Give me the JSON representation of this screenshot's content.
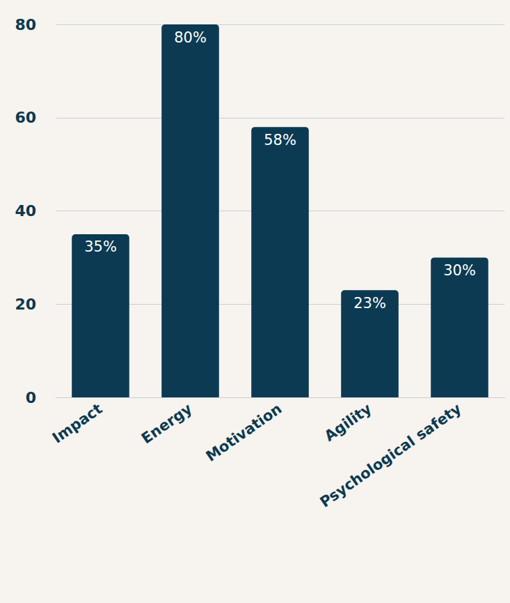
{
  "chart_data": {
    "type": "bar",
    "categories": [
      "Impact",
      "Energy",
      "Motivation",
      "Agility",
      "Psychological safety"
    ],
    "values": [
      35,
      80,
      58,
      23,
      30
    ],
    "value_labels": [
      "35%",
      "80%",
      "58%",
      "23%",
      "30%"
    ],
    "data_labels": true,
    "color": "#0b3a52",
    "ylim": [
      0,
      80
    ],
    "yticks": [
      0,
      20,
      40,
      60,
      80
    ],
    "grid": true
  }
}
